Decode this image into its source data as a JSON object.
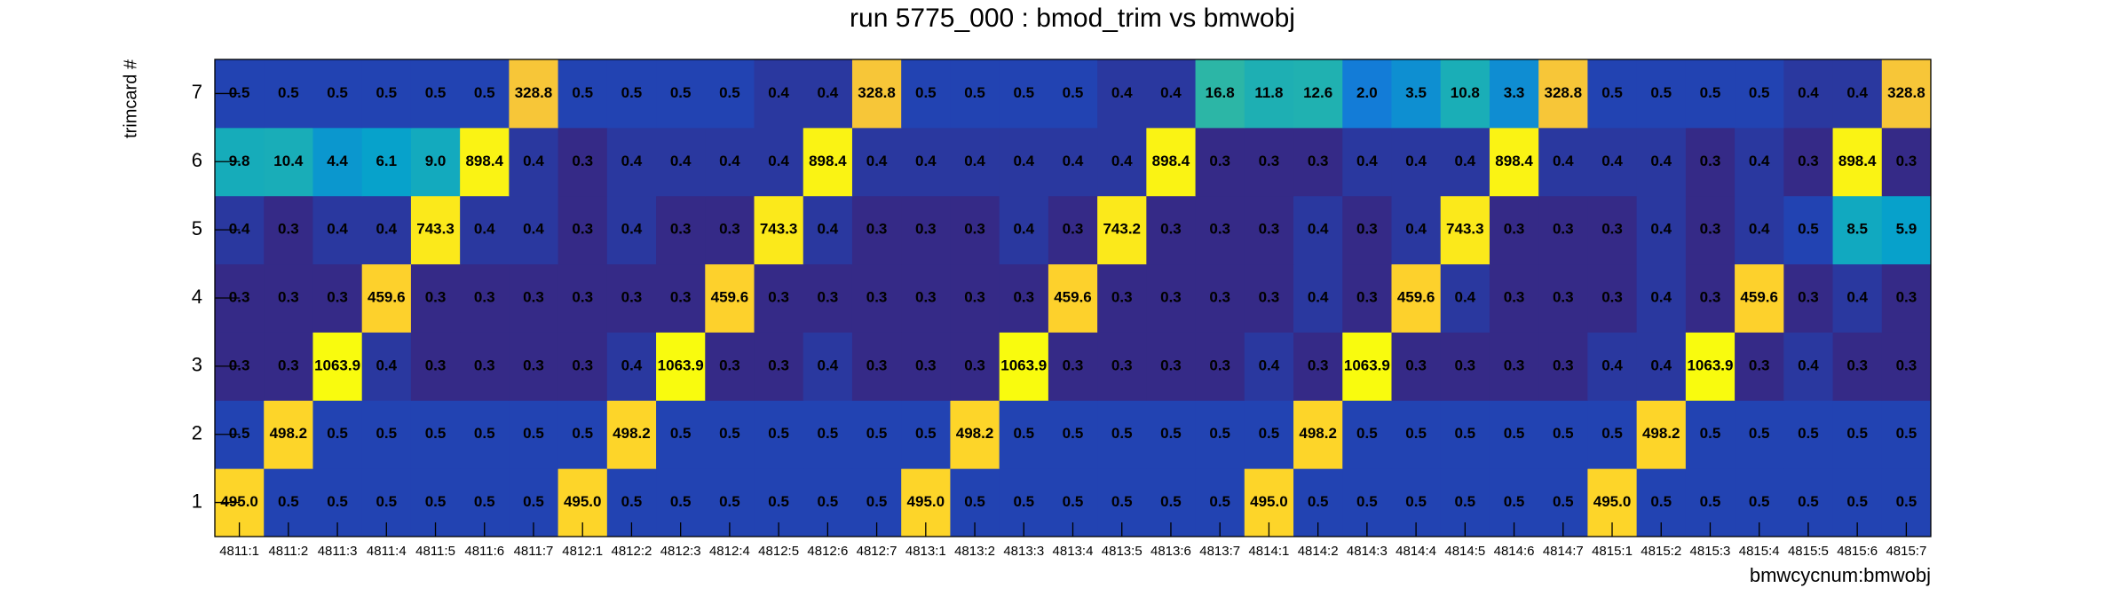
{
  "chart_data": {
    "type": "heatmap",
    "title": "run 5775_000 : bmod_trim vs bmwobj",
    "x_label": "bmwcycnum:bmwobj",
    "y_label": "trimcard #",
    "categories": [
      "4811:1",
      "4811:2",
      "4811:3",
      "4811:4",
      "4811:5",
      "4811:6",
      "4811:7",
      "4812:1",
      "4812:2",
      "4812:3",
      "4812:4",
      "4812:5",
      "4812:6",
      "4812:7",
      "4813:1",
      "4813:2",
      "4813:3",
      "4813:4",
      "4813:5",
      "4813:6",
      "4813:7",
      "4814:1",
      "4814:2",
      "4814:3",
      "4814:4",
      "4814:5",
      "4814:6",
      "4814:7",
      "4815:1",
      "4815:2",
      "4815:3",
      "4815:4",
      "4815:5",
      "4815:6",
      "4815:7"
    ],
    "y": [
      1,
      2,
      3,
      4,
      5,
      6,
      7
    ],
    "ylim": [
      0.5,
      7.5
    ],
    "zlog": true,
    "palette": [
      "#352a87",
      "#0f5cdd",
      "#1481d6",
      "#06a4ca",
      "#2eb7a4",
      "#87bf77",
      "#d1bb59",
      "#fec832",
      "#f9fb0e"
    ],
    "values": [
      [
        495,
        0.5,
        0.5,
        0.5,
        0.5,
        0.5,
        0.5,
        495,
        0.5,
        0.5,
        0.5,
        0.5,
        0.5,
        0.5,
        495,
        0.5,
        0.5,
        0.5,
        0.5,
        0.5,
        0.5,
        495,
        0.5,
        0.5,
        0.5,
        0.5,
        0.5,
        0.5,
        495,
        0.5,
        0.5,
        0.5,
        0.5,
        0.5,
        0.5
      ],
      [
        0.5,
        498.2,
        0.5,
        0.5,
        0.5,
        0.5,
        0.5,
        0.5,
        498.2,
        0.5,
        0.5,
        0.5,
        0.5,
        0.5,
        0.5,
        498.2,
        0.5,
        0.5,
        0.5,
        0.5,
        0.5,
        0.5,
        498.2,
        0.5,
        0.5,
        0.5,
        0.5,
        0.5,
        0.5,
        498.2,
        0.5,
        0.5,
        0.5,
        0.5,
        0.5
      ],
      [
        0.3,
        0.3,
        1063.9,
        0.4,
        0.3,
        0.3,
        0.3,
        0.3,
        0.4,
        1063.9,
        0.3,
        0.3,
        0.4,
        0.3,
        0.3,
        0.3,
        1063.9,
        0.3,
        0.3,
        0.3,
        0.3,
        0.4,
        0.3,
        1063.9,
        0.3,
        0.3,
        0.3,
        0.3,
        0.4,
        0.4,
        1063.9,
        0.3,
        0.4,
        0.3,
        0.3
      ],
      [
        0.3,
        0.3,
        0.3,
        459.6,
        0.3,
        0.3,
        0.3,
        0.3,
        0.3,
        0.3,
        459.6,
        0.3,
        0.3,
        0.3,
        0.3,
        0.3,
        0.3,
        459.6,
        0.3,
        0.3,
        0.3,
        0.3,
        0.4,
        0.3,
        459.6,
        0.4,
        0.3,
        0.3,
        0.3,
        0.4,
        0.3,
        459.6,
        0.3,
        0.4,
        0.3
      ],
      [
        0.4,
        0.3,
        0.4,
        0.4,
        743.3,
        0.4,
        0.4,
        0.3,
        0.4,
        0.3,
        0.3,
        743.3,
        0.4,
        0.3,
        0.3,
        0.3,
        0.4,
        0.3,
        743.2,
        0.3,
        0.3,
        0.3,
        0.4,
        0.3,
        0.4,
        743.3,
        0.3,
        0.3,
        0.3,
        0.4,
        0.3,
        0.4,
        0.5,
        8.5,
        5.9
      ],
      [
        9.8,
        10.4,
        4.4,
        6.1,
        9.0,
        898.4,
        0.4,
        0.3,
        0.4,
        0.4,
        0.4,
        0.4,
        898.4,
        0.4,
        0.4,
        0.4,
        0.4,
        0.4,
        0.4,
        898.4,
        0.3,
        0.3,
        0.3,
        0.4,
        0.4,
        0.4,
        898.4,
        0.4,
        0.4,
        0.4,
        0.3,
        0.4,
        0.3,
        898.4,
        0.3
      ],
      [
        0.5,
        0.5,
        0.5,
        0.5,
        0.5,
        0.5,
        328.8,
        0.5,
        0.5,
        0.5,
        0.5,
        0.4,
        0.4,
        328.8,
        0.5,
        0.5,
        0.5,
        0.5,
        0.4,
        0.4,
        16.8,
        11.8,
        12.6,
        2.0,
        3.5,
        10.8,
        3.3,
        328.8,
        0.5,
        0.5,
        0.5,
        0.5,
        0.4,
        0.4,
        328.8
      ]
    ],
    "value_labels": [
      [
        "495.0",
        "0.5",
        "0.5",
        "0.5",
        "0.5",
        "0.5",
        "0.5",
        "495.0",
        "0.5",
        "0.5",
        "0.5",
        "0.5",
        "0.5",
        "0.5",
        "495.0",
        "0.5",
        "0.5",
        "0.5",
        "0.5",
        "0.5",
        "0.5",
        "495.0",
        "0.5",
        "0.5",
        "0.5",
        "0.5",
        "0.5",
        "0.5",
        "495.0",
        "0.5",
        "0.5",
        "0.5",
        "0.5",
        "0.5",
        "0.5"
      ],
      [
        "0.5",
        "498.2",
        "0.5",
        "0.5",
        "0.5",
        "0.5",
        "0.5",
        "0.5",
        "498.2",
        "0.5",
        "0.5",
        "0.5",
        "0.5",
        "0.5",
        "0.5",
        "498.2",
        "0.5",
        "0.5",
        "0.5",
        "0.5",
        "0.5",
        "0.5",
        "498.2",
        "0.5",
        "0.5",
        "0.5",
        "0.5",
        "0.5",
        "0.5",
        "498.2",
        "0.5",
        "0.5",
        "0.5",
        "0.5",
        "0.5"
      ],
      [
        "0.3",
        "0.3",
        "1063.9",
        "0.4",
        "0.3",
        "0.3",
        "0.3",
        "0.3",
        "0.4",
        "1063.9",
        "0.3",
        "0.3",
        "0.4",
        "0.3",
        "0.3",
        "0.3",
        "1063.9",
        "0.3",
        "0.3",
        "0.3",
        "0.3",
        "0.4",
        "0.3",
        "1063.9",
        "0.3",
        "0.3",
        "0.3",
        "0.3",
        "0.4",
        "0.4",
        "1063.9",
        "0.3",
        "0.4",
        "0.3",
        "0.3"
      ],
      [
        "0.3",
        "0.3",
        "0.3",
        "459.6",
        "0.3",
        "0.3",
        "0.3",
        "0.3",
        "0.3",
        "0.3",
        "459.6",
        "0.3",
        "0.3",
        "0.3",
        "0.3",
        "0.3",
        "0.3",
        "459.6",
        "0.3",
        "0.3",
        "0.3",
        "0.3",
        "0.4",
        "0.3",
        "459.6",
        "0.4",
        "0.3",
        "0.3",
        "0.3",
        "0.4",
        "0.3",
        "459.6",
        "0.3",
        "0.4",
        "0.3"
      ],
      [
        "0.4",
        "0.3",
        "0.4",
        "0.4",
        "743.3",
        "0.4",
        "0.4",
        "0.3",
        "0.4",
        "0.3",
        "0.3",
        "743.3",
        "0.4",
        "0.3",
        "0.3",
        "0.3",
        "0.4",
        "0.3",
        "743.2",
        "0.3",
        "0.3",
        "0.3",
        "0.4",
        "0.3",
        "0.4",
        "743.3",
        "0.3",
        "0.3",
        "0.3",
        "0.4",
        "0.3",
        "0.4",
        "0.5",
        "8.5",
        "5.9"
      ],
      [
        "9.8",
        "10.4",
        "4.4",
        "6.1",
        "9.0",
        "898.4",
        "0.4",
        "0.3",
        "0.4",
        "0.4",
        "0.4",
        "0.4",
        "898.4",
        "0.4",
        "0.4",
        "0.4",
        "0.4",
        "0.4",
        "0.4",
        "898.4",
        "0.3",
        "0.3",
        "0.3",
        "0.4",
        "0.4",
        "0.4",
        "898.4",
        "0.4",
        "0.4",
        "0.4",
        "0.3",
        "0.4",
        "0.3",
        "898.4",
        "0.3"
      ],
      [
        "0.5",
        "0.5",
        "0.5",
        "0.5",
        "0.5",
        "0.5",
        "328.8",
        "0.5",
        "0.5",
        "0.5",
        "0.5",
        "0.4",
        "0.4",
        "328.8",
        "0.5",
        "0.5",
        "0.5",
        "0.5",
        "0.4",
        "0.4",
        "16.8",
        "11.8",
        "12.6",
        "2.0",
        "3.5",
        "10.8",
        "3.3",
        "328.8",
        "0.5",
        "0.5",
        "0.5",
        "0.5",
        "0.4",
        "0.4",
        "328.8"
      ]
    ]
  }
}
